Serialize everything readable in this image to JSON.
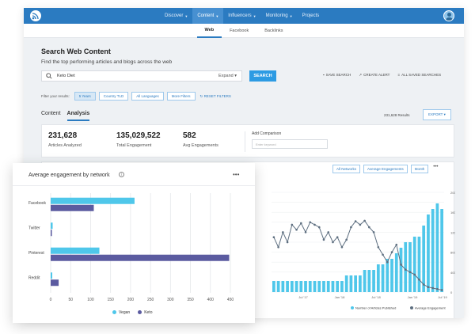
{
  "topnav": {
    "items": [
      {
        "label": "Discover",
        "caret": true,
        "active": false
      },
      {
        "label": "Content",
        "caret": true,
        "active": true
      },
      {
        "label": "Influencers",
        "caret": true,
        "active": false
      },
      {
        "label": "Monitoring",
        "caret": true,
        "active": false
      },
      {
        "label": "Projects",
        "caret": false,
        "active": false
      }
    ]
  },
  "subnav": {
    "items": [
      "Web",
      "Facebook",
      "Backlinks"
    ],
    "active_index": 0
  },
  "page": {
    "title": "Search Web Content",
    "subtitle": "Find the top performing articles and blogs across the web"
  },
  "search": {
    "value": "Keto Diet",
    "expand_label": "Expand",
    "button_label": "SEARCH"
  },
  "actions": [
    "SAVE SEARCH",
    "CREATE ALERT",
    "ALL SAVED SEARCHES"
  ],
  "filters": {
    "label": "Filter your results:",
    "chips": [
      "5 Years",
      "Country TLD",
      "All Languages",
      "More Filters"
    ],
    "reset_label": "RESET FILTERS"
  },
  "tabs": {
    "items": [
      "Content",
      "Analysis"
    ],
    "active_index": 1
  },
  "results_label": "231,628 Results",
  "export_label": "EXPORT",
  "stats": [
    {
      "value": "231,628",
      "label": "Articles Analyzed"
    },
    {
      "value": "135,029,522",
      "label": "Total Engagement"
    },
    {
      "value": "582",
      "label": "Avg Engagements"
    }
  ],
  "comparison": {
    "label": "Add Comparison",
    "placeholder": "Enter keyword"
  },
  "chart_controls": {
    "buttons": [
      "All Networks",
      "Average Engagements",
      "Month"
    ],
    "more": "•••"
  },
  "colors": {
    "primary": "#2b7bc1",
    "cyan": "#4fc7ea",
    "purple": "#5b5ba0",
    "bg_line": "#5e6f80"
  },
  "chart_data": [
    {
      "type": "bar",
      "title": "Average engagement by network",
      "orientation": "horizontal",
      "categories": [
        "Facebook",
        "Twitter",
        "Pinterest",
        "Reddit"
      ],
      "series": [
        {
          "name": "Vegan",
          "values": [
            210,
            5,
            122,
            4
          ]
        },
        {
          "name": "Keto",
          "values": [
            108,
            3,
            447,
            20
          ]
        }
      ],
      "xticks": [
        "0",
        "50",
        "100",
        "150",
        "200",
        "250",
        "300",
        "350",
        "400",
        "450"
      ],
      "xlim": [
        0,
        450
      ],
      "more_label": "•••",
      "info_icon": "info-icon"
    },
    {
      "type": "bar+line",
      "series": [
        {
          "name": "Number of Articles Published",
          "type": "bar",
          "values": [
            2,
            2,
            2,
            2,
            2,
            2,
            2,
            2,
            2,
            2,
            2,
            2,
            2,
            2,
            2,
            2,
            3,
            3,
            3,
            3,
            4,
            4,
            4,
            5,
            5,
            6,
            6,
            7,
            8,
            9,
            9,
            10,
            10,
            12,
            14,
            15,
            16,
            15
          ]
        },
        {
          "name": "Average Engagement",
          "type": "line",
          "values": [
            1100,
            900,
            1200,
            1000,
            1350,
            1250,
            1380,
            1200,
            1400,
            1350,
            1300,
            1050,
            1200,
            1000,
            1100,
            900,
            1050,
            1300,
            1420,
            1350,
            1430,
            1300,
            1200,
            900,
            750,
            600,
            800,
            950,
            550,
            450,
            400,
            350,
            250,
            150,
            100,
            80,
            60,
            40
          ]
        }
      ],
      "xticks": [
        "Jul '17",
        "Jan '18",
        "Jul '18",
        "Jan '19",
        "Jul '19"
      ],
      "y_right_ticks": [
        "0",
        "200",
        "400",
        "600",
        "800",
        "1000",
        "1200",
        "1400",
        "1600",
        "1800",
        "2000"
      ],
      "y_right_label": "Number of Engagements"
    }
  ]
}
